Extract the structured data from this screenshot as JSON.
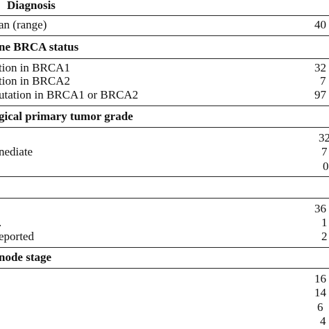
{
  "table": {
    "sections": [
      {
        "header": "Diagnosis",
        "rows": [
          {
            "label": "an (range)",
            "value": "40"
          }
        ]
      },
      {
        "header": "ne BRCA status",
        "rows": [
          {
            "label": "tion in BRCA1",
            "value": "32"
          },
          {
            "label": "tion in BRCA2",
            "value": "7"
          },
          {
            "label": "utation in BRCA1 or BRCA2",
            "value": "97"
          }
        ]
      },
      {
        "header": "gical primary tumor grade",
        "rows": [
          {
            "label": "",
            "value": "32"
          },
          {
            "label": "nediate",
            "value": "7"
          },
          {
            "label": "",
            "value": "0"
          }
        ]
      },
      {
        "header": "",
        "rows": [
          {
            "label": "",
            "value": "36"
          },
          {
            "label": ".",
            "value": "1"
          },
          {
            "label": "eported",
            "value": "2"
          }
        ]
      },
      {
        "header": "node stage",
        "rows": [
          {
            "label": "",
            "value": "16"
          },
          {
            "label": "",
            "value": "14"
          },
          {
            "label": "",
            "value": "6"
          },
          {
            "label": "",
            "value": "4"
          }
        ]
      }
    ]
  }
}
